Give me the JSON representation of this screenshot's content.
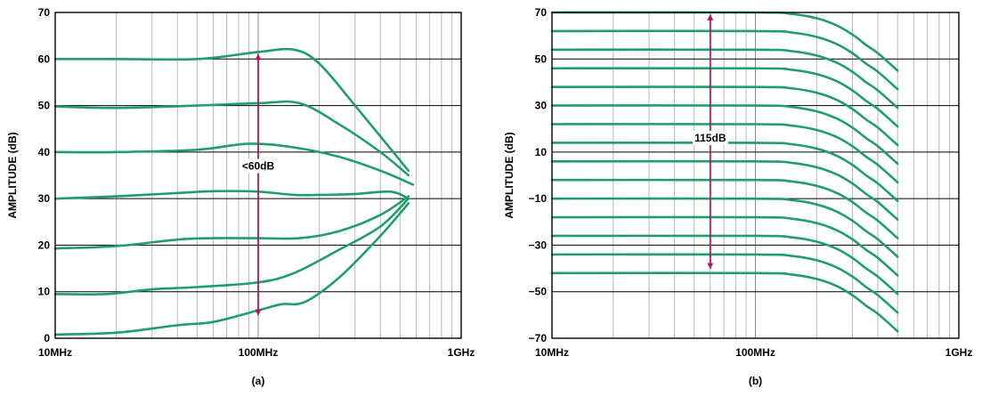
{
  "chart_data": [
    {
      "type": "line",
      "panel_label": "(a)",
      "ylabel": "AMPLITUDE (dB)",
      "xscale": "log",
      "xlim": [
        10,
        1000
      ],
      "ylim": [
        0,
        70
      ],
      "x_tick_labels": [
        {
          "value": 10,
          "label": "10MHz"
        },
        {
          "value": 100,
          "label": "100MHz"
        },
        {
          "value": 1000,
          "label": "1GHz"
        }
      ],
      "y_tick_labels": [
        {
          "value": 0,
          "label": "0"
        },
        {
          "value": 10,
          "label": "10"
        },
        {
          "value": 20,
          "label": "20"
        },
        {
          "value": 30,
          "label": "30"
        },
        {
          "value": 40,
          "label": "40"
        },
        {
          "value": 50,
          "label": "50"
        },
        {
          "value": 60,
          "label": "60"
        },
        {
          "value": 70,
          "label": "70"
        }
      ],
      "grid": true,
      "series_color": "#1f9e6b",
      "series": [
        {
          "x": [
            10,
            20,
            50,
            100,
            150,
            200,
            300,
            550
          ],
          "y": [
            60,
            60,
            60,
            61.5,
            62,
            59,
            50,
            36
          ]
        },
        {
          "x": [
            10,
            20,
            50,
            100,
            160,
            250,
            400,
            550
          ],
          "y": [
            49.8,
            49.5,
            50,
            50.5,
            50.5,
            46,
            40,
            35
          ]
        },
        {
          "x": [
            10,
            20,
            50,
            90,
            150,
            250,
            400,
            580
          ],
          "y": [
            40,
            40,
            40.5,
            41.8,
            41,
            39,
            36,
            33
          ]
        },
        {
          "x": [
            10,
            20,
            40,
            60,
            100,
            150,
            200,
            300,
            450,
            550
          ],
          "y": [
            30,
            30.5,
            31.2,
            31.6,
            31.5,
            30.8,
            30.8,
            31,
            31.5,
            30
          ]
        },
        {
          "x": [
            10,
            20,
            40,
            60,
            100,
            160,
            250,
            400,
            550
          ],
          "y": [
            19.3,
            19.8,
            21.2,
            21.5,
            21.5,
            21.5,
            23,
            26.5,
            30.5
          ]
        },
        {
          "x": [
            10,
            18,
            30,
            50,
            100,
            150,
            250,
            400,
            550
          ],
          "y": [
            9.5,
            9.5,
            10.5,
            11,
            12,
            14,
            19,
            24,
            30
          ]
        },
        {
          "x": [
            10,
            20,
            40,
            60,
            100,
            130,
            170,
            250,
            400,
            550
          ],
          "y": [
            0.8,
            1.2,
            2.8,
            3.5,
            6,
            7.3,
            7.8,
            13,
            22,
            29
          ]
        }
      ],
      "annotation": {
        "text": "<60dB",
        "x": 100,
        "y_from": 61,
        "y_to": 5,
        "text_y": 37,
        "color": "#c0105a"
      }
    },
    {
      "type": "line",
      "panel_label": "(b)",
      "ylabel": "AMPLITUDE (dB)",
      "xscale": "log",
      "xlim": [
        10,
        1000
      ],
      "ylim": [
        -70,
        70
      ],
      "x_tick_labels": [
        {
          "value": 10,
          "label": "10MHz"
        },
        {
          "value": 100,
          "label": "100MHz"
        },
        {
          "value": 1000,
          "label": "1GHz"
        }
      ],
      "y_tick_labels": [
        {
          "value": 70,
          "label": "70"
        },
        {
          "value": 50,
          "label": "50"
        },
        {
          "value": 30,
          "label": "30"
        },
        {
          "value": 10,
          "label": "10"
        },
        {
          "value": -10,
          "label": "−10"
        },
        {
          "value": -30,
          "label": "−30"
        },
        {
          "value": -50,
          "label": "−50"
        },
        {
          "value": -70,
          "label": "−70"
        }
      ],
      "grid": true,
      "series_color": "#1f9e6b",
      "rolloff_x": [
        10,
        100,
        150,
        200,
        250,
        300,
        350,
        400,
        500
      ],
      "rolloff_drop": [
        0,
        0,
        0.6,
        2.5,
        5.5,
        9.5,
        14,
        17.5,
        25
      ],
      "series_levels": [
        70,
        62,
        54,
        46,
        38,
        30,
        22,
        14,
        6,
        -2,
        -10,
        -18,
        -26,
        -34,
        -42
      ],
      "annotation": {
        "text": "115dB",
        "x": 60,
        "y_from": 69,
        "y_to": -40,
        "text_y": 16,
        "color": "#c0105a"
      }
    }
  ]
}
